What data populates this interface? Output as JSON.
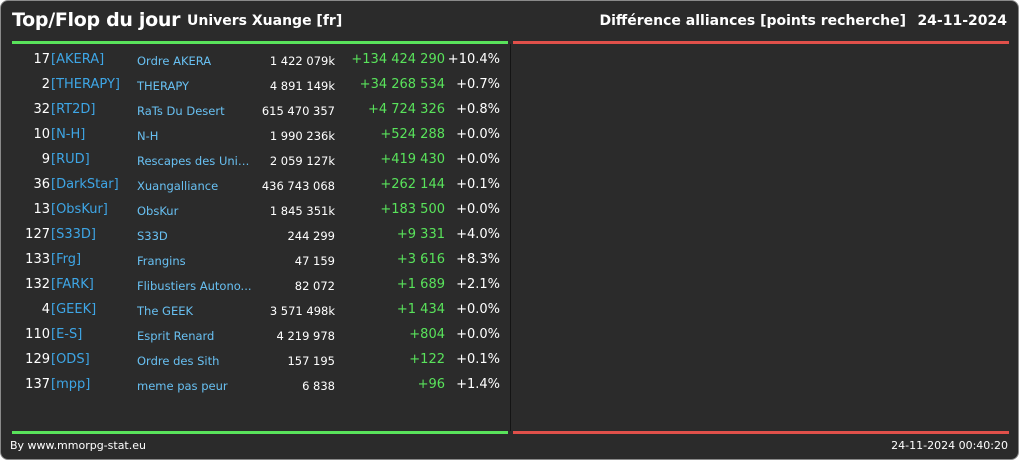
{
  "header": {
    "title": "Top/Flop du jour",
    "universe": "Univers Xuange [fr]",
    "category": "Différence alliances [points recherche]",
    "date": "24-11-2024"
  },
  "colors": {
    "top_accent": "#59e35b",
    "flop_accent": "#e0504a",
    "tag": "#3ea6e6",
    "name": "#68c0f2",
    "background": "#2b2b2b"
  },
  "top_rows": [
    {
      "rank": "17",
      "tag": "[AKERA]",
      "name": "Ordre AKERA",
      "points": "1 422 079k",
      "diff": "+134 424 290",
      "pct": "+10.4%"
    },
    {
      "rank": "2",
      "tag": "[THERAPY]",
      "name": "THERAPY",
      "points": "4 891 149k",
      "diff": "+34 268 534",
      "pct": "+0.7%"
    },
    {
      "rank": "32",
      "tag": "[RT2D]",
      "name": "RaTs Du Desert",
      "points": "615 470 357",
      "diff": "+4 724 326",
      "pct": "+0.8%"
    },
    {
      "rank": "10",
      "tag": "[N-H]",
      "name": "N-H",
      "points": "1 990 236k",
      "diff": "+524 288",
      "pct": "+0.0%"
    },
    {
      "rank": "9",
      "tag": "[RUD]",
      "name": "Rescapes des Univ...",
      "points": "2 059 127k",
      "diff": "+419 430",
      "pct": "+0.0%"
    },
    {
      "rank": "36",
      "tag": "[DarkStar]",
      "name": "Xuangalliance",
      "points": "436 743 068",
      "diff": "+262 144",
      "pct": "+0.1%"
    },
    {
      "rank": "13",
      "tag": "[ObsKur]",
      "name": "ObsKur",
      "points": "1 845 351k",
      "diff": "+183 500",
      "pct": "+0.0%"
    },
    {
      "rank": "127",
      "tag": "[S33D]",
      "name": "S33D",
      "points": "244 299",
      "diff": "+9 331",
      "pct": "+4.0%"
    },
    {
      "rank": "133",
      "tag": "[Frg]",
      "name": "Frangins",
      "points": "47 159",
      "diff": "+3 616",
      "pct": "+8.3%"
    },
    {
      "rank": "132",
      "tag": "[FARK]",
      "name": "Flibustiers Autono...",
      "points": "82 072",
      "diff": "+1 689",
      "pct": "+2.1%"
    },
    {
      "rank": "4",
      "tag": "[GEEK]",
      "name": "The GEEK",
      "points": "3 571 498k",
      "diff": "+1 434",
      "pct": "+0.0%"
    },
    {
      "rank": "110",
      "tag": "[E-S]",
      "name": "Esprit Renard",
      "points": "4 219 978",
      "diff": "+804",
      "pct": "+0.0%"
    },
    {
      "rank": "129",
      "tag": "[ODS]",
      "name": "Ordre des Sith",
      "points": "157 195",
      "diff": "+122",
      "pct": "+0.1%"
    },
    {
      "rank": "137",
      "tag": "[mpp]",
      "name": "meme pas peur",
      "points": "6 838",
      "diff": "+96",
      "pct": "+1.4%"
    }
  ],
  "footer": {
    "credit": "By www.mmorpg-stat.eu",
    "timestamp": "24-11-2024 00:40:20"
  }
}
